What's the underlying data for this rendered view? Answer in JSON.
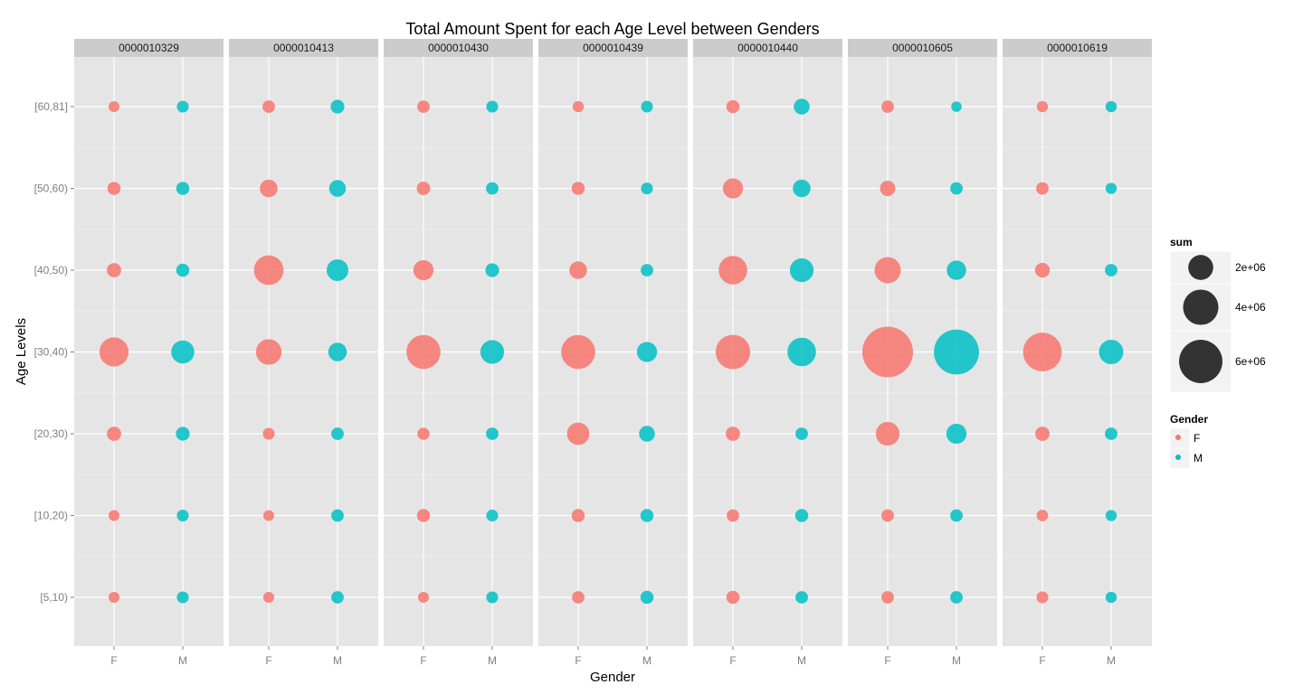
{
  "chart_data": {
    "type": "scatter",
    "title": "Total Amount Spent for each Age Level between Genders",
    "xlabel": "Gender",
    "ylabel": "Age Levels",
    "x_categories": [
      "F",
      "M"
    ],
    "y_categories": [
      "[5,10)",
      "[10,20)",
      "[20,30)",
      "[30,40)",
      "[40,50)",
      "[50,60)",
      "[60,81]"
    ],
    "colors": {
      "F": "#F8766D",
      "M": "#00BFC4"
    },
    "size_legend": {
      "title": "sum",
      "entries": [
        {
          "label": "2e+06",
          "value": 2000000
        },
        {
          "label": "4e+06",
          "value": 4000000
        },
        {
          "label": "6e+06",
          "value": 6000000
        }
      ]
    },
    "color_legend": {
      "title": "Gender",
      "entries": [
        "F",
        "M"
      ]
    },
    "panels": [
      {
        "id": "0000010329",
        "F": [
          380000,
          380000,
          650000,
          2700000,
          650000,
          550000,
          380000
        ],
        "M": [
          450000,
          450000,
          600000,
          1700000,
          550000,
          550000,
          450000
        ]
      },
      {
        "id": "0000010413",
        "F": [
          380000,
          380000,
          450000,
          2100000,
          2800000,
          1000000,
          500000
        ],
        "M": [
          500000,
          500000,
          500000,
          1100000,
          1500000,
          900000,
          600000
        ]
      },
      {
        "id": "0000010430",
        "F": [
          380000,
          550000,
          480000,
          3700000,
          1300000,
          580000,
          500000
        ],
        "M": [
          450000,
          450000,
          500000,
          1800000,
          600000,
          500000,
          450000
        ]
      },
      {
        "id": "0000010439",
        "F": [
          500000,
          550000,
          1600000,
          3700000,
          1000000,
          550000,
          400000
        ],
        "M": [
          550000,
          550000,
          800000,
          1300000,
          500000,
          450000,
          450000
        ]
      },
      {
        "id": "0000010440",
        "F": [
          550000,
          500000,
          650000,
          3800000,
          2600000,
          1300000,
          550000
        ],
        "M": [
          500000,
          550000,
          500000,
          2600000,
          1800000,
          1000000,
          800000
        ]
      },
      {
        "id": "0000010605",
        "F": [
          500000,
          500000,
          1800000,
          8200000,
          2200000,
          750000,
          500000
        ],
        "M": [
          500000,
          500000,
          1300000,
          6500000,
          1200000,
          500000,
          350000
        ]
      },
      {
        "id": "0000010619",
        "F": [
          450000,
          420000,
          650000,
          4800000,
          700000,
          500000,
          400000
        ],
        "M": [
          400000,
          400000,
          500000,
          1900000,
          500000,
          400000,
          400000
        ]
      }
    ]
  }
}
